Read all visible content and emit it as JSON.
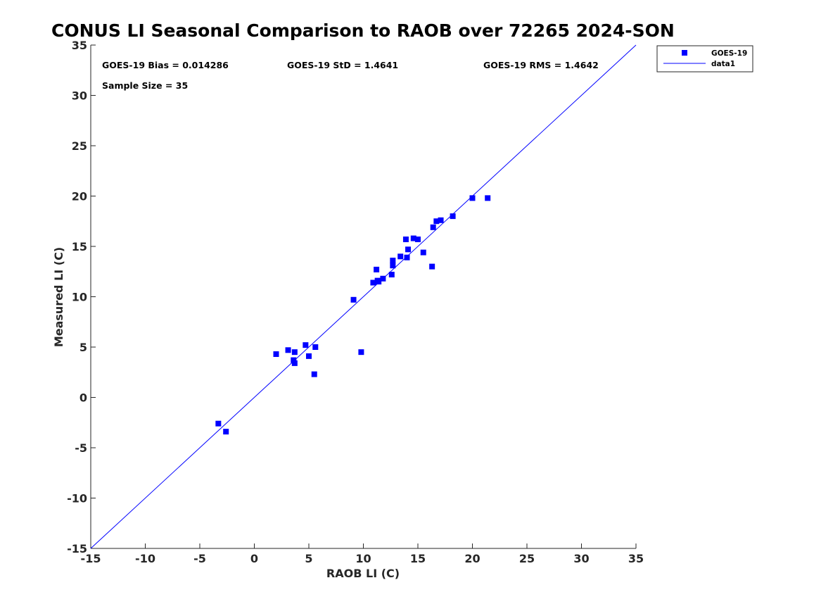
{
  "chart_data": {
    "type": "scatter",
    "title": "CONUS LI Seasonal Comparison to RAOB over 72265 2024-SON",
    "xlabel": "RAOB LI (C)",
    "ylabel": "Measured LI (C)",
    "xlim": [
      -15,
      35
    ],
    "ylim": [
      -15,
      35
    ],
    "xticks": [
      -15,
      -10,
      -5,
      0,
      5,
      10,
      15,
      20,
      25,
      30,
      35
    ],
    "yticks": [
      -15,
      -10,
      -5,
      0,
      5,
      10,
      15,
      20,
      25,
      30,
      35
    ],
    "grid": false,
    "legend_position": "outside-top-right",
    "annotations": {
      "bias": "GOES-19 Bias = 0.014286",
      "std": "GOES-19 StD = 1.4641",
      "rms": "GOES-19 RMS = 1.4642",
      "sample_size": "Sample Size = 35"
    },
    "series": [
      {
        "name": "GOES-19",
        "marker": "square",
        "color": "#0000ff",
        "points": [
          [
            -3.3,
            -2.6
          ],
          [
            -2.6,
            -3.4
          ],
          [
            2.0,
            4.3
          ],
          [
            3.1,
            4.7
          ],
          [
            3.6,
            3.7
          ],
          [
            3.7,
            3.4
          ],
          [
            3.7,
            4.5
          ],
          [
            4.7,
            5.2
          ],
          [
            5.0,
            4.1
          ],
          [
            5.5,
            2.3
          ],
          [
            5.6,
            5.0
          ],
          [
            9.1,
            9.7
          ],
          [
            9.8,
            4.5
          ],
          [
            10.9,
            11.4
          ],
          [
            11.2,
            12.7
          ],
          [
            11.3,
            11.6
          ],
          [
            11.4,
            11.5
          ],
          [
            11.8,
            11.8
          ],
          [
            12.6,
            12.2
          ],
          [
            12.7,
            13.6
          ],
          [
            12.7,
            13.1
          ],
          [
            13.4,
            14.0
          ],
          [
            13.9,
            15.7
          ],
          [
            14.0,
            13.9
          ],
          [
            14.1,
            14.7
          ],
          [
            14.6,
            15.8
          ],
          [
            15.0,
            15.7
          ],
          [
            15.5,
            14.4
          ],
          [
            16.3,
            13.0
          ],
          [
            16.4,
            16.9
          ],
          [
            16.7,
            17.5
          ],
          [
            17.1,
            17.6
          ],
          [
            18.2,
            18.0
          ],
          [
            20.0,
            19.8
          ],
          [
            21.4,
            19.8
          ]
        ]
      },
      {
        "name": "data1",
        "type": "line",
        "color": "#0000ff",
        "points": [
          [
            -15,
            -15
          ],
          [
            35,
            35
          ]
        ]
      }
    ]
  }
}
